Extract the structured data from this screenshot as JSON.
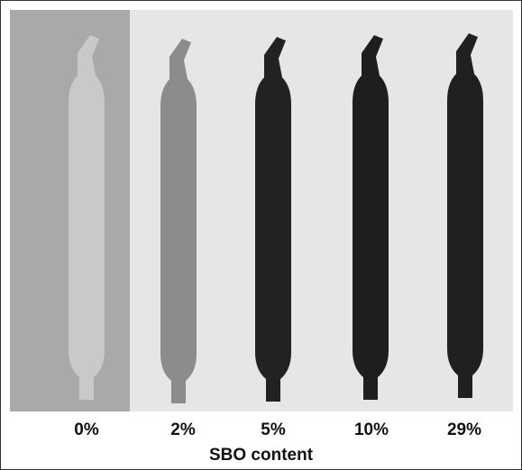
{
  "labels": [
    "0%",
    "2%",
    "5%",
    "10%",
    "29%"
  ],
  "caption": "SBO content"
}
